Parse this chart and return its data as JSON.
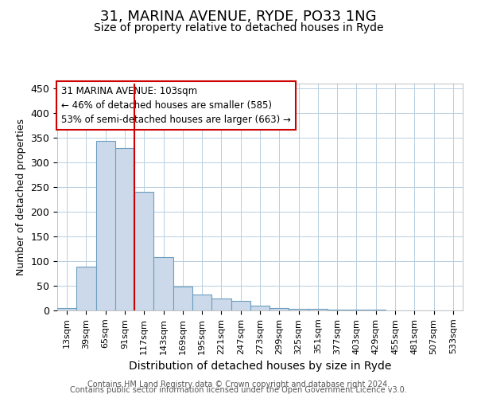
{
  "title": "31, MARINA AVENUE, RYDE, PO33 1NG",
  "subtitle": "Size of property relative to detached houses in Ryde",
  "xlabel": "Distribution of detached houses by size in Ryde",
  "ylabel": "Number of detached properties",
  "footer_line1": "Contains HM Land Registry data © Crown copyright and database right 2024.",
  "footer_line2": "Contains public sector information licensed under the Open Government Licence v3.0.",
  "property_label": "31 MARINA AVENUE: 103sqm",
  "annotation_line1": "← 46% of detached houses are smaller (585)",
  "annotation_line2": "53% of semi-detached houses are larger (663) →",
  "bar_color": "#ccd9ea",
  "bar_edge_color": "#6a9fc0",
  "vline_color": "#cc0000",
  "categories": [
    "13sqm",
    "39sqm",
    "65sqm",
    "91sqm",
    "117sqm",
    "143sqm",
    "169sqm",
    "195sqm",
    "221sqm",
    "247sqm",
    "273sqm",
    "299sqm",
    "325sqm",
    "351sqm",
    "377sqm",
    "403sqm",
    "429sqm",
    "455sqm",
    "481sqm",
    "507sqm",
    "533sqm"
  ],
  "values": [
    5,
    88,
    343,
    330,
    240,
    108,
    49,
    32,
    25,
    20,
    9,
    5,
    4,
    3,
    2,
    1,
    1,
    0,
    0,
    0,
    0
  ],
  "ylim": [
    0,
    460
  ],
  "yticks": [
    0,
    50,
    100,
    150,
    200,
    250,
    300,
    350,
    400,
    450
  ],
  "vline_x": 3.5,
  "background_color": "#ffffff",
  "grid_color": "#b8cfe0",
  "title_fontsize": 13,
  "subtitle_fontsize": 10,
  "ylabel_fontsize": 9,
  "xlabel_fontsize": 10,
  "ytick_fontsize": 9,
  "xtick_fontsize": 8
}
